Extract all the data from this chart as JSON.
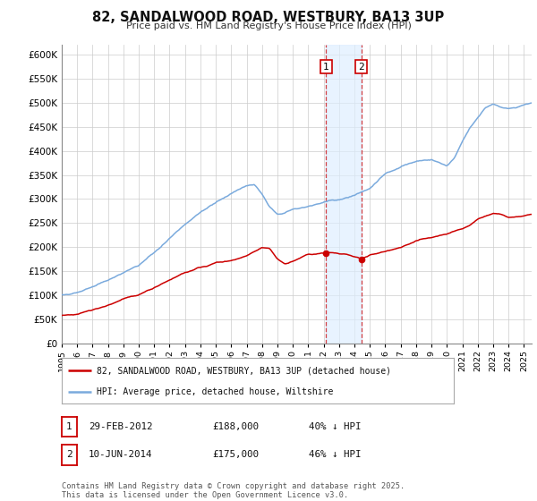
{
  "title": "82, SANDALWOOD ROAD, WESTBURY, BA13 3UP",
  "subtitle": "Price paid vs. HM Land Registry's House Price Index (HPI)",
  "bg_color": "#ffffff",
  "plot_bg_color": "#ffffff",
  "grid_color": "#cccccc",
  "hpi_color": "#7aaadd",
  "price_color": "#cc0000",
  "shade_color": "#ddeeff",
  "yticks": [
    0,
    50000,
    100000,
    150000,
    200000,
    250000,
    300000,
    350000,
    400000,
    450000,
    500000,
    550000,
    600000
  ],
  "sale1_date": 2012.16,
  "sale1_price": 188000,
  "sale1_label": "1",
  "sale2_date": 2014.44,
  "sale2_price": 175000,
  "sale2_label": "2",
  "legend_line1": "82, SANDALWOOD ROAD, WESTBURY, BA13 3UP (detached house)",
  "legend_line2": "HPI: Average price, detached house, Wiltshire",
  "table_row1": [
    "1",
    "29-FEB-2012",
    "£188,000",
    "40% ↓ HPI"
  ],
  "table_row2": [
    "2",
    "10-JUN-2014",
    "£175,000",
    "46% ↓ HPI"
  ],
  "footnote1": "Contains HM Land Registry data © Crown copyright and database right 2025.",
  "footnote2": "This data is licensed under the Open Government Licence v3.0.",
  "xmin": 1995,
  "xmax": 2025.5,
  "ymin": 0,
  "ymax": 620000
}
